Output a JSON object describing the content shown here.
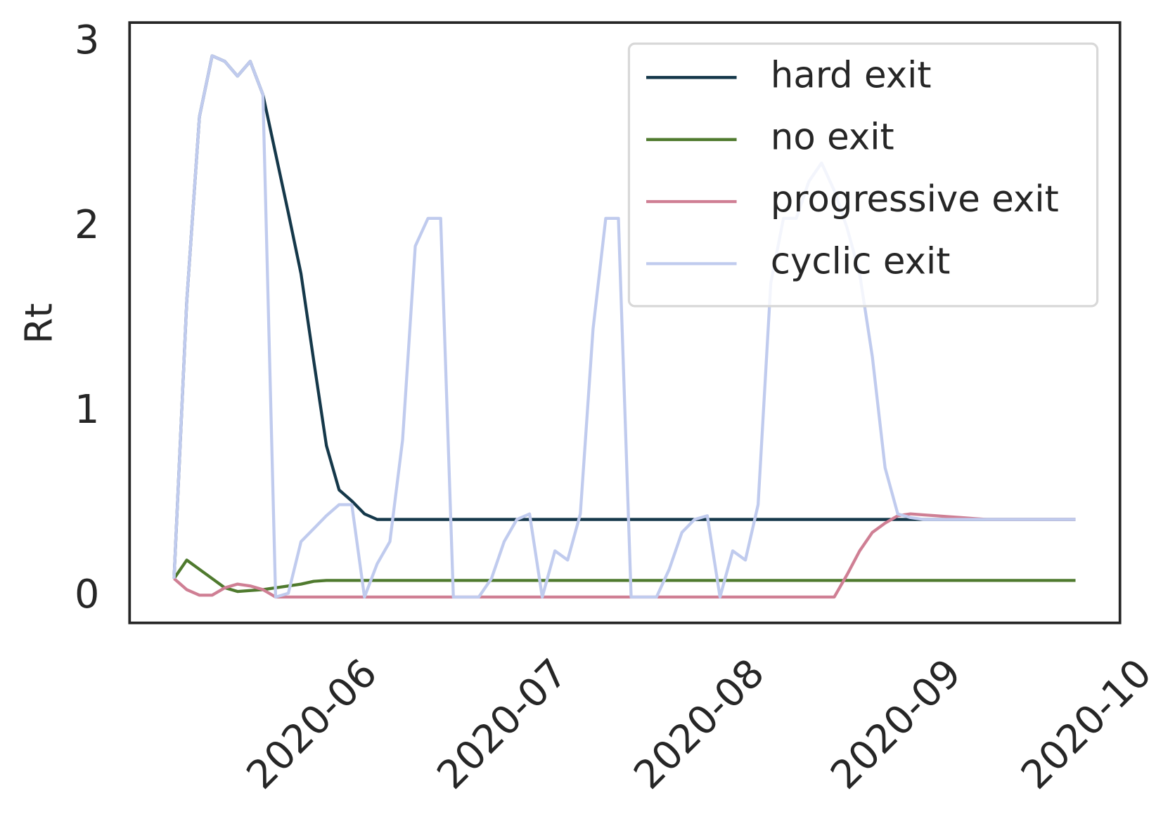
{
  "chart_data": {
    "type": "line",
    "y_label": "Rt",
    "x": [
      "2020-05-10",
      "2020-05-12",
      "2020-05-14",
      "2020-05-16",
      "2020-05-18",
      "2020-05-20",
      "2020-05-22",
      "2020-05-24",
      "2020-05-26",
      "2020-05-28",
      "2020-05-30",
      "2020-06-01",
      "2020-06-03",
      "2020-06-05",
      "2020-06-07",
      "2020-06-09",
      "2020-06-11",
      "2020-06-13",
      "2020-06-15",
      "2020-06-17",
      "2020-06-19",
      "2020-06-21",
      "2020-06-23",
      "2020-06-25",
      "2020-06-27",
      "2020-06-29",
      "2020-07-01",
      "2020-07-03",
      "2020-07-05",
      "2020-07-07",
      "2020-07-09",
      "2020-07-11",
      "2020-07-13",
      "2020-07-15",
      "2020-07-17",
      "2020-07-19",
      "2020-07-21",
      "2020-07-23",
      "2020-07-25",
      "2020-07-27",
      "2020-07-29",
      "2020-07-31",
      "2020-08-02",
      "2020-08-04",
      "2020-08-06",
      "2020-08-08",
      "2020-08-10",
      "2020-08-12",
      "2020-08-14",
      "2020-08-16",
      "2020-08-18",
      "2020-08-20",
      "2020-08-22",
      "2020-08-24",
      "2020-08-26",
      "2020-08-28",
      "2020-08-30",
      "2020-09-01",
      "2020-09-03",
      "2020-09-05",
      "2020-09-07",
      "2020-09-09",
      "2020-09-11",
      "2020-09-13",
      "2020-09-15",
      "2020-09-17",
      "2020-09-19",
      "2020-09-21",
      "2020-09-23",
      "2020-09-25",
      "2020-09-27",
      "2020-09-29"
    ],
    "series": [
      {
        "name": "hard exit",
        "color": "#15384a",
        "values": [
          0.1,
          1.6,
          2.6,
          2.93,
          2.9,
          2.82,
          2.9,
          2.72,
          2.4,
          2.08,
          1.75,
          1.28,
          0.82,
          0.58,
          0.52,
          0.45,
          0.42,
          0.42,
          0.42,
          0.42,
          0.42,
          0.42,
          0.42,
          0.42,
          0.42,
          0.42,
          0.42,
          0.42,
          0.42,
          0.42,
          0.42,
          0.42,
          0.42,
          0.42,
          0.42,
          0.42,
          0.42,
          0.42,
          0.42,
          0.42,
          0.42,
          0.42,
          0.42,
          0.42,
          0.42,
          0.42,
          0.42,
          0.42,
          0.42,
          0.42,
          0.42,
          0.42,
          0.42,
          0.42,
          0.42,
          0.42,
          0.42,
          0.42,
          0.42,
          0.42,
          0.42,
          0.42,
          0.42,
          0.42,
          0.42,
          0.42,
          0.42,
          0.42,
          0.42,
          0.42,
          0.42,
          0.42
        ]
      },
      {
        "name": "no exit",
        "color": "#4f7a2e",
        "values": [
          0.1,
          0.2,
          0.15,
          0.1,
          0.05,
          0.03,
          0.035,
          0.04,
          0.05,
          0.06,
          0.07,
          0.085,
          0.09,
          0.09,
          0.09,
          0.09,
          0.09,
          0.09,
          0.09,
          0.09,
          0.09,
          0.09,
          0.09,
          0.09,
          0.09,
          0.09,
          0.09,
          0.09,
          0.09,
          0.09,
          0.09,
          0.09,
          0.09,
          0.09,
          0.09,
          0.09,
          0.09,
          0.09,
          0.09,
          0.09,
          0.09,
          0.09,
          0.09,
          0.09,
          0.09,
          0.09,
          0.09,
          0.09,
          0.09,
          0.09,
          0.09,
          0.09,
          0.09,
          0.09,
          0.09,
          0.09,
          0.09,
          0.09,
          0.09,
          0.09,
          0.09,
          0.09,
          0.09,
          0.09,
          0.09,
          0.09,
          0.09,
          0.09,
          0.09,
          0.09,
          0.09,
          0.09
        ]
      },
      {
        "name": "progressive exit",
        "color": "#cf7f94",
        "values": [
          0.1,
          0.04,
          0.01,
          0.01,
          0.05,
          0.07,
          0.06,
          0.04,
          0,
          0,
          0,
          0,
          0,
          0,
          0,
          0,
          0,
          0,
          0,
          0,
          0,
          0,
          0,
          0,
          0,
          0,
          0,
          0,
          0,
          0,
          0,
          0,
          0,
          0,
          0,
          0,
          0,
          0,
          0,
          0,
          0,
          0,
          0,
          0,
          0,
          0,
          0,
          0,
          0,
          0,
          0,
          0,
          0,
          0.12,
          0.25,
          0.35,
          0.4,
          0.44,
          0.45,
          0.445,
          0.44,
          0.435,
          0.43,
          0.425,
          0.42,
          0.42,
          0.42,
          0.42,
          0.42,
          0.42,
          0.42,
          0.42
        ]
      },
      {
        "name": "cyclic exit",
        "color": "#c0cbee",
        "values": [
          0.1,
          1.6,
          2.6,
          2.93,
          2.9,
          2.82,
          2.9,
          2.72,
          0,
          0.02,
          0.3,
          0.37,
          0.44,
          0.5,
          0.5,
          0,
          0.18,
          0.3,
          0.85,
          1.9,
          2.05,
          2.05,
          0,
          0,
          0,
          0.1,
          0.3,
          0.42,
          0.45,
          0,
          0.25,
          0.2,
          0.45,
          1.45,
          2.05,
          2.05,
          0,
          0,
          0,
          0.15,
          0.35,
          0.42,
          0.44,
          0,
          0.25,
          0.2,
          0.5,
          1.7,
          2.05,
          2.05,
          2.25,
          2.35,
          2.2,
          2.0,
          1.75,
          1.3,
          0.7,
          0.45,
          0.43,
          0.42,
          0.42,
          0.42,
          0.42,
          0.42,
          0.42,
          0.42,
          0.42,
          0.42,
          0.42,
          0.42,
          0.42,
          0.42
        ]
      }
    ],
    "xlim": [
      "2020-05-03",
      "2020-10-06"
    ],
    "xticks": [
      "2020-06",
      "2020-07",
      "2020-08",
      "2020-09",
      "2020-10"
    ],
    "ylim": [
      -0.14,
      3.11
    ],
    "yticks": [
      0,
      1,
      2,
      3
    ],
    "grid": false,
    "legend": "upper right"
  }
}
